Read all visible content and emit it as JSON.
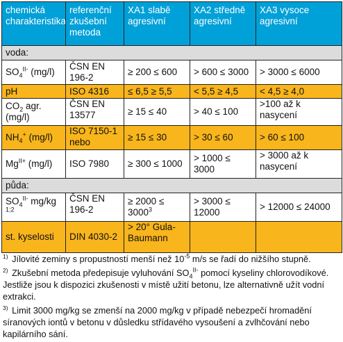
{
  "header": {
    "col1": "chemická charakteristika",
    "col2": "referenční zkušební metoda",
    "col3": "XA1 slabě agresivní",
    "col4": "XA2 středně agresivní",
    "col5": "XA3 vysoce agresivní"
  },
  "sections": {
    "water": "voda:",
    "soil": "půda:"
  },
  "rows": {
    "so4_water": {
      "name_pre": "SO",
      "name_sub": "4",
      "name_sup": "II-",
      "name_post": " (mg/l)",
      "method": "ČSN EN 196-2",
      "xa1": "≥ 200 ≤ 600",
      "xa2": "> 600 ≤ 3000",
      "xa3": "> 3000 ≤ 6000"
    },
    "ph": {
      "name": "pH",
      "method": "ISO 4316",
      "xa1": "≤ 6,5 ≥ 5,5",
      "xa2": "< 5,5 ≥ 4,5",
      "xa3": "< 4,5 ≥ 4,0"
    },
    "co2": {
      "name_pre": "CO",
      "name_sub": "2",
      "name_post": " agr. (mg/l)",
      "method": "ČSN EN 13577",
      "xa1": "≥ 15 ≤ 40",
      "xa2": "> 40 ≤ 100",
      "xa3": ">100 až k nasycení"
    },
    "nh4": {
      "name_pre": "NH",
      "name_sub": "4",
      "name_sup": "+",
      "name_post": " (mg/l)",
      "method": "ISO 7150-1 nebo",
      "xa1": "≥ 15 ≤ 30",
      "xa2": "> 30 ≤ 60",
      "xa3": "> 60 ≤ 100"
    },
    "mg": {
      "name_pre": "Mg",
      "name_sup": "II+",
      "name_post": " (mg/l)",
      "method": "ISO 7980",
      "xa1": "≥ 300 ≤ 1000",
      "xa2": "> 1000 ≤ 3000",
      "xa3": "> 3000 až k nasycení"
    },
    "so4_soil": {
      "name_pre": "SO",
      "name_sub": "4",
      "name_sup": "II-",
      "name_post": " mg/kg",
      "name_note": " 1;2",
      "method": "ČSN EN 196-2",
      "xa1": "≥ 2000 ≤ 3000",
      "xa1_note": "3",
      "xa2": "> 3000 ≤ 12000",
      "xa3": "> 12000 ≤ 24000"
    },
    "acidity": {
      "name": "st. kyselosti",
      "method": "DIN 4030-2",
      "xa1": "> 20° Gula-Baumann",
      "xa2": "",
      "xa3": ""
    }
  },
  "notes": {
    "n1": {
      "marker": "1)",
      "text_a": " Jílovité zeminy s propustností menší než 10",
      "exp": "-5",
      "text_b": " m/s se řadí do nižšího stupně."
    },
    "n2": {
      "marker": "2)",
      "text_a": " Zkušební metoda předepisuje vyluhování SO",
      "sub": "4",
      "sup": "II-",
      "text_b": " pomocí kyseliny chlorovodíkové. Jestliže jsou k dispozici zkušenosti v místě užití betonu, lze alternativně užít vodní extrakci."
    },
    "n3": {
      "marker": "3)",
      "text": " Limit 3000 mg/kg se zmenší na 2000 mg/kg v případě nebezpečí hromadění síranových iontů v betonu v důsledku střídavého vysoušení a zvlhčování nebo kapilárního sání."
    }
  },
  "colors": {
    "header": "#00a0d8",
    "section": "#dcdcdc",
    "highlight": "#f9b51c",
    "white": "#ffffff"
  }
}
